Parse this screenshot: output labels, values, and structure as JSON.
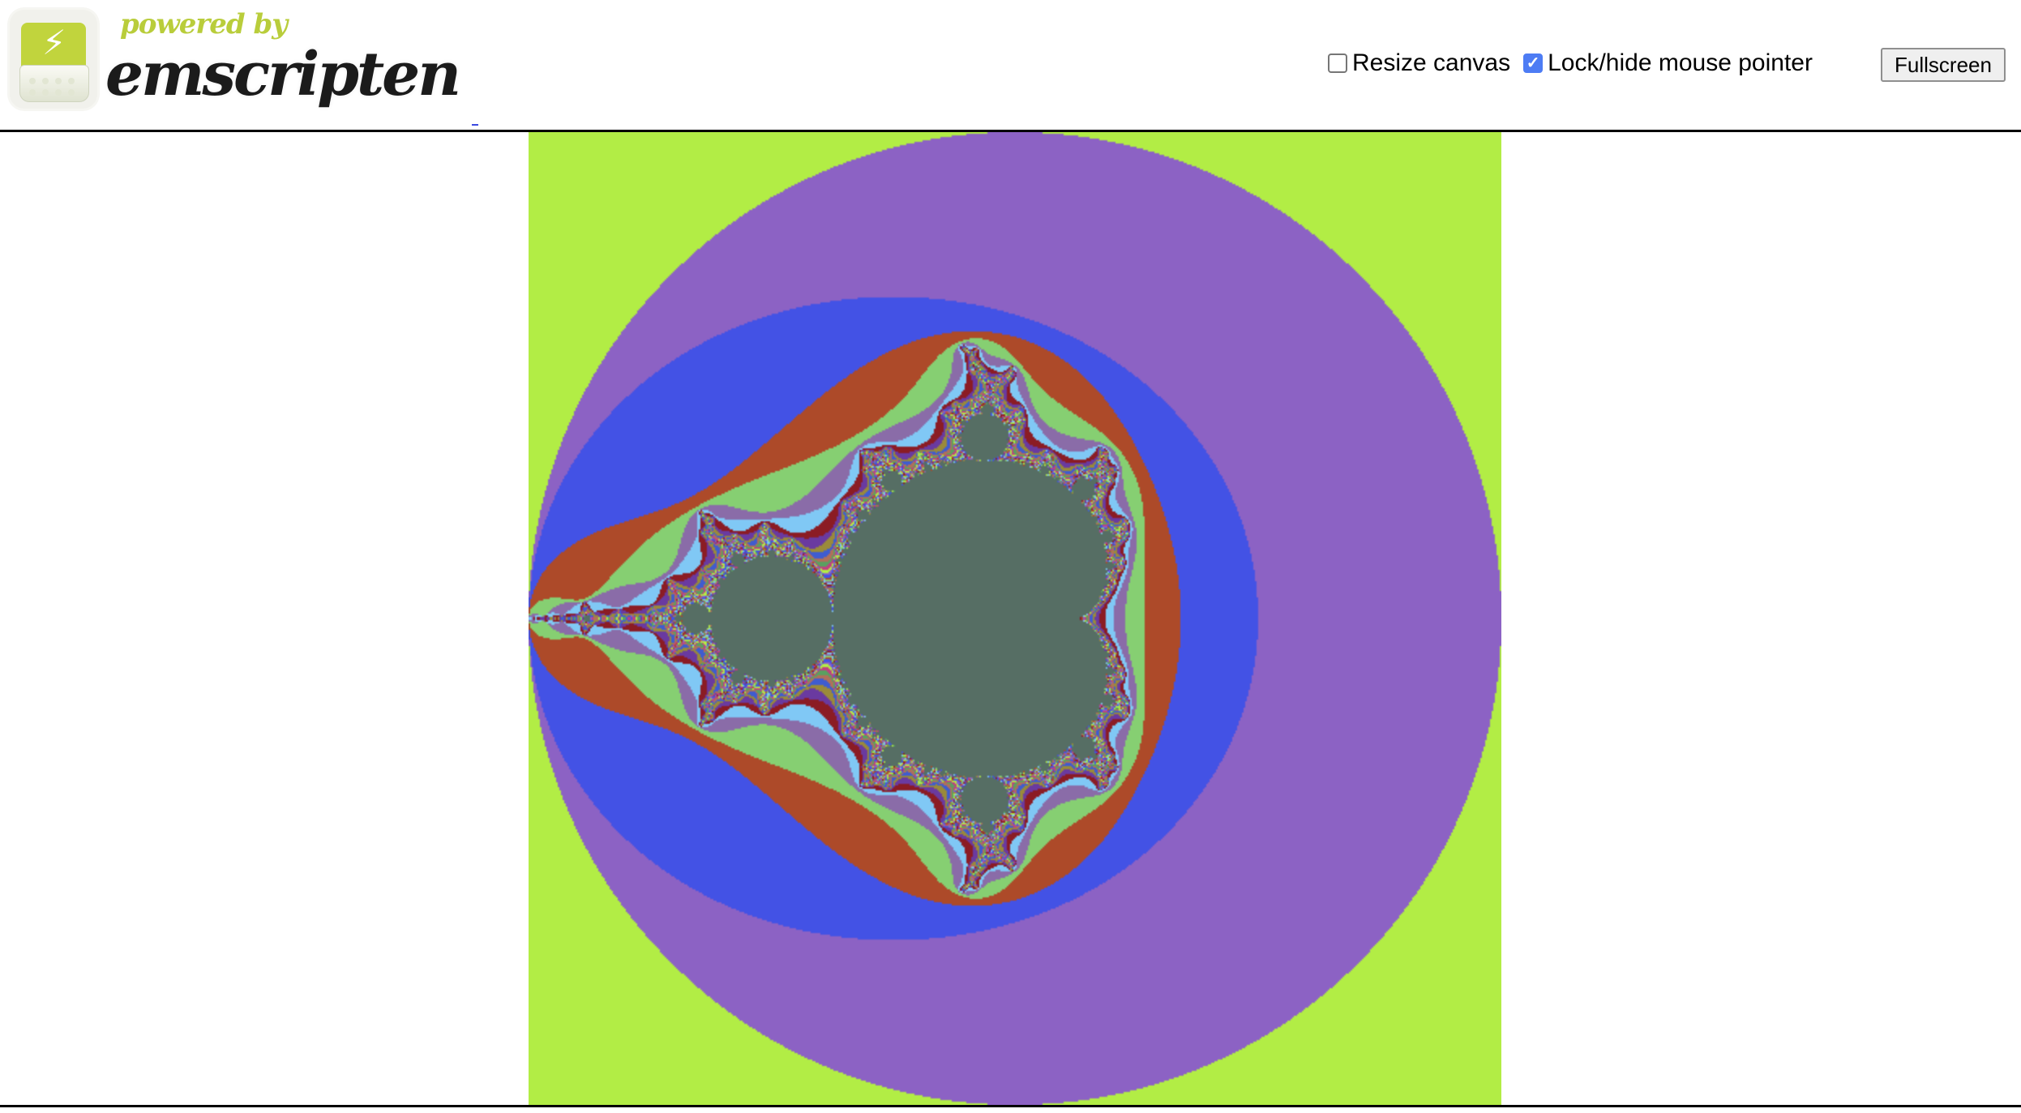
{
  "logo": {
    "powered_by": "powered by",
    "name": "emscripten"
  },
  "controls": {
    "resize_canvas": {
      "label": "Resize canvas",
      "checked": false
    },
    "lock_pointer": {
      "label": "Lock/hide mouse pointer",
      "checked": true
    },
    "fullscreen_label": "Fullscreen"
  },
  "canvas": {
    "content": "mandelbrot-set",
    "view": {
      "re_range": [
        -2,
        2
      ],
      "im_range": [
        -2,
        2
      ]
    },
    "colors": {
      "interior": "#566e64",
      "bands": [
        "#b2ed45",
        "#8c62c4",
        "#4352e5",
        "#ad4a29",
        "#86cf72",
        "#8a6ca8",
        "#80c8f5",
        "#8b1c24",
        "#6a3aa0",
        "#9a8a3a",
        "#3f5ccf",
        "#b0705a",
        "#5aa060",
        "#c04080"
      ]
    }
  },
  "accent_colors": {
    "checkbox": "#4d7cf4",
    "link": "#3b49e0"
  }
}
